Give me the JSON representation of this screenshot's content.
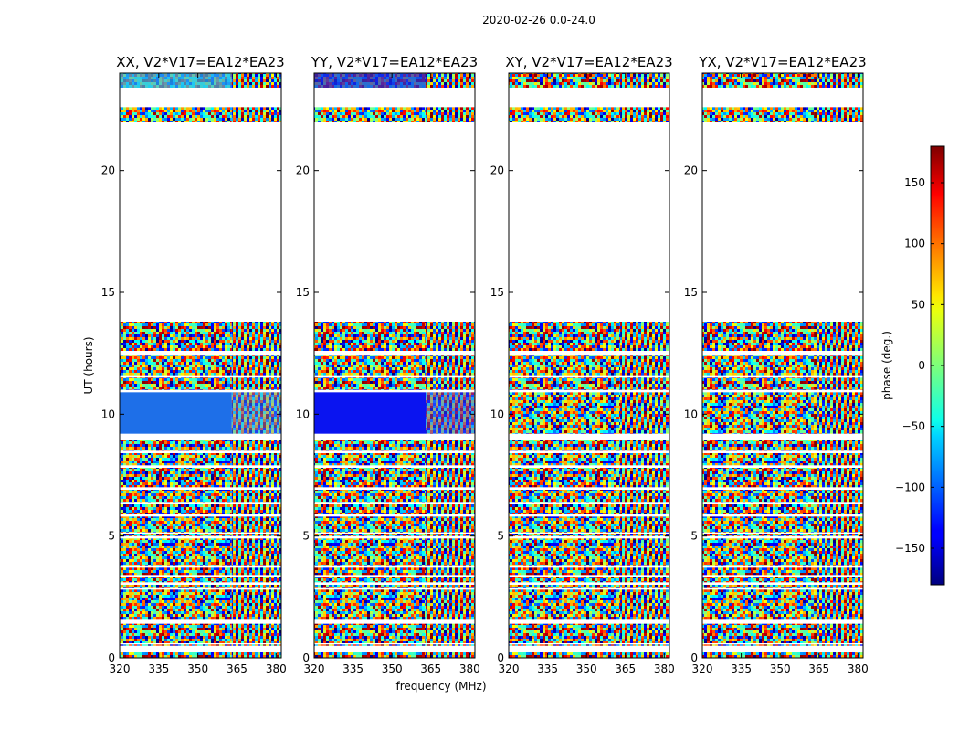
{
  "chart_data": {
    "type": "heatmap",
    "suptitle": "2020-02-26 0.0-24.0",
    "xlabel": "frequency (MHz)",
    "ylabel": "UT (hours)",
    "xlim": [
      320,
      382
    ],
    "ylim": [
      0,
      24
    ],
    "xticks": [
      320,
      335,
      350,
      365,
      380
    ],
    "yticks": [
      0,
      5,
      10,
      15,
      20
    ],
    "panels": [
      {
        "title": "XX, V2*V17=EA12*EA23",
        "pattern": "xx"
      },
      {
        "title": "YY, V2*V17=EA12*EA23",
        "pattern": "yy"
      },
      {
        "title": "XY, V2*V17=EA12*EA23",
        "pattern": "noise"
      },
      {
        "title": "YX, V2*V17=EA12*EA23",
        "pattern": "noise"
      }
    ],
    "colorbar": {
      "label": "phase (deg.)",
      "range": [
        -180,
        180
      ],
      "ticks": [
        150,
        100,
        50,
        0,
        -50,
        -100,
        -150
      ],
      "tick_labels": [
        "150",
        "100",
        "50",
        "0",
        "−50",
        "−100",
        "−150"
      ],
      "colormap": "jet"
    },
    "data_segments_ut": [
      [
        0.0,
        0.25
      ],
      [
        0.5,
        0.55
      ],
      [
        0.6,
        1.4
      ],
      [
        1.6,
        2.8
      ],
      [
        2.9,
        3.0
      ],
      [
        3.1,
        3.3
      ],
      [
        3.4,
        3.7
      ],
      [
        3.8,
        4.9
      ],
      [
        5.0,
        5.1
      ],
      [
        5.15,
        5.8
      ],
      [
        5.9,
        6.3
      ],
      [
        6.4,
        6.9
      ],
      [
        7.0,
        7.8
      ],
      [
        7.9,
        8.4
      ],
      [
        8.5,
        8.95
      ],
      [
        9.2,
        10.9
      ],
      [
        11.0,
        11.5
      ],
      [
        11.6,
        12.4
      ],
      [
        12.6,
        13.8
      ],
      [
        22.0,
        22.6
      ],
      [
        23.4,
        24.0
      ]
    ]
  }
}
